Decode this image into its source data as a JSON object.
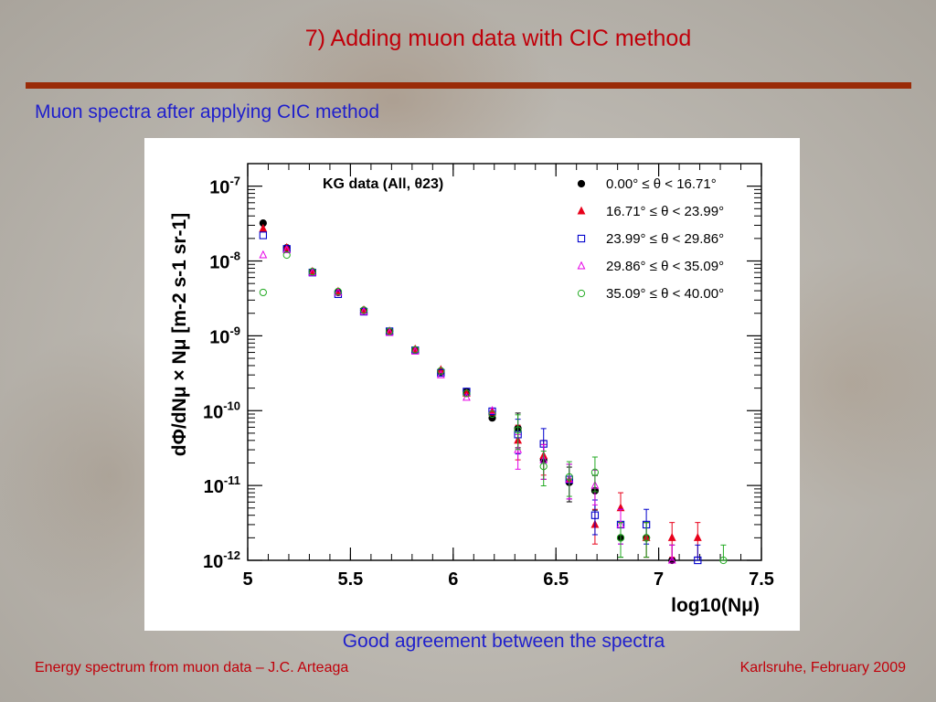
{
  "slide": {
    "title": "7) Adding muon data with CIC method",
    "subtitle": "Muon spectra after applying CIC method",
    "caption": "Good agreement between the spectra",
    "footer_left": "Energy spectrum from muon data – J.C. Arteaga",
    "footer_right": "Karlsruhe,  February 2009",
    "colors": {
      "title": "#c0000a",
      "text_blue": "#1f1fcc",
      "rule": "#9a2b08"
    }
  },
  "chart_data": {
    "type": "scatter",
    "annotation": "KG data (All, θ23)",
    "xlabel": "log10(Nμ)",
    "ylabel": "dΦ/dNμ × Nμ [m-2 s-1 sr-1]",
    "xlim": [
      5,
      7.5
    ],
    "ylim": [
      1e-12,
      2e-07
    ],
    "yscale": "log",
    "grid": false,
    "legend_position": "top-right",
    "x_ticks": [
      "5",
      "5.5",
      "6",
      "6.5",
      "7",
      "7.5"
    ],
    "y_ticks": [
      {
        "base": "10",
        "exp": "-7",
        "value": 1e-07
      },
      {
        "base": "10",
        "exp": "-8",
        "value": 1e-08
      },
      {
        "base": "10",
        "exp": "-9",
        "value": 1e-09
      },
      {
        "base": "10",
        "exp": "-10",
        "value": 1e-10
      },
      {
        "base": "10",
        "exp": "-11",
        "value": 1e-11
      },
      {
        "base": "10",
        "exp": "-12",
        "value": 1e-12
      }
    ],
    "series": [
      {
        "name": "0.00° ≤ θ < 16.71°",
        "marker": "filled-circle",
        "color": "#000000",
        "points": [
          [
            5.075,
            3.2e-08
          ],
          [
            5.19,
            1.5e-08
          ],
          [
            5.315,
            7.2e-09
          ],
          [
            5.44,
            3.8e-09
          ],
          [
            5.565,
            2.2e-09
          ],
          [
            5.69,
            1.15e-09
          ],
          [
            5.815,
            6.5e-10
          ],
          [
            5.94,
            3.3e-10
          ],
          [
            6.065,
            1.8e-10
          ],
          [
            6.19,
            8e-11
          ],
          [
            6.315,
            5.8e-11
          ],
          [
            6.44,
            2.2e-11
          ],
          [
            6.565,
            1.1e-11
          ],
          [
            6.69,
            8.5e-12
          ],
          [
            6.815,
            2e-12
          ],
          [
            6.94,
            2e-12
          ],
          [
            7.065,
            1e-12
          ]
        ]
      },
      {
        "name": "16.71° ≤ θ < 23.99°",
        "marker": "filled-triangle",
        "color": "#e8001a",
        "points": [
          [
            5.075,
            2.7e-08
          ],
          [
            5.19,
            1.5e-08
          ],
          [
            5.315,
            7.2e-09
          ],
          [
            5.44,
            3.9e-09
          ],
          [
            5.565,
            2.2e-09
          ],
          [
            5.69,
            1.15e-09
          ],
          [
            5.815,
            6.6e-10
          ],
          [
            5.94,
            3.5e-10
          ],
          [
            6.065,
            1.7e-10
          ],
          [
            6.19,
            9.5e-11
          ],
          [
            6.315,
            4e-11
          ],
          [
            6.44,
            2.5e-11
          ],
          [
            6.565,
            1.2e-11
          ],
          [
            6.69,
            3e-12
          ],
          [
            6.815,
            5e-12
          ],
          [
            6.94,
            2e-12
          ],
          [
            7.065,
            2e-12
          ],
          [
            7.19,
            2e-12
          ]
        ]
      },
      {
        "name": "23.99° ≤ θ < 29.86°",
        "marker": "open-square",
        "color": "#0000cc",
        "points": [
          [
            5.075,
            2.2e-08
          ],
          [
            5.19,
            1.45e-08
          ],
          [
            5.315,
            7e-09
          ],
          [
            5.44,
            3.6e-09
          ],
          [
            5.565,
            2.1e-09
          ],
          [
            5.69,
            1.15e-09
          ],
          [
            5.815,
            6.4e-10
          ],
          [
            5.94,
            3.2e-10
          ],
          [
            6.065,
            1.8e-10
          ],
          [
            6.19,
            9.8e-11
          ],
          [
            6.315,
            4.8e-11
          ],
          [
            6.44,
            3.6e-11
          ],
          [
            6.565,
            1.2e-11
          ],
          [
            6.69,
            4e-12
          ],
          [
            6.815,
            3e-12
          ],
          [
            6.94,
            3e-12
          ],
          [
            7.19,
            1e-12
          ]
        ]
      },
      {
        "name": "29.86° ≤ θ < 35.09°",
        "marker": "open-triangle",
        "color": "#e600e6",
        "points": [
          [
            5.075,
            1.2e-08
          ],
          [
            5.19,
            1.4e-08
          ],
          [
            5.315,
            7e-09
          ],
          [
            5.44,
            3.8e-09
          ],
          [
            5.565,
            2.1e-09
          ],
          [
            5.69,
            1.1e-09
          ],
          [
            5.815,
            6.2e-10
          ],
          [
            5.94,
            3e-10
          ],
          [
            6.065,
            1.5e-10
          ],
          [
            6.19,
            1e-10
          ],
          [
            6.315,
            3e-11
          ],
          [
            6.44,
            2.2e-11
          ],
          [
            6.565,
            1.2e-11
          ],
          [
            6.69,
            1e-11
          ],
          [
            6.815,
            3e-12
          ],
          [
            7.065,
            1e-12
          ]
        ]
      },
      {
        "name": "35.09° ≤ θ < 40.00°",
        "marker": "open-circle",
        "color": "#22aa22",
        "points": [
          [
            5.075,
            3.8e-09
          ],
          [
            5.19,
            1.2e-08
          ],
          [
            5.315,
            7.2e-09
          ],
          [
            5.44,
            3.9e-09
          ],
          [
            5.565,
            2.2e-09
          ],
          [
            5.69,
            1.15e-09
          ],
          [
            5.815,
            6.5e-10
          ],
          [
            5.94,
            3.4e-10
          ],
          [
            6.065,
            1.7e-10
          ],
          [
            6.19,
            9e-11
          ],
          [
            6.315,
            5.5e-11
          ],
          [
            6.44,
            1.8e-11
          ],
          [
            6.565,
            1.3e-11
          ],
          [
            6.69,
            1.5e-11
          ],
          [
            6.815,
            2e-12
          ],
          [
            6.94,
            2e-12
          ],
          [
            7.315,
            1e-12
          ]
        ]
      }
    ]
  }
}
